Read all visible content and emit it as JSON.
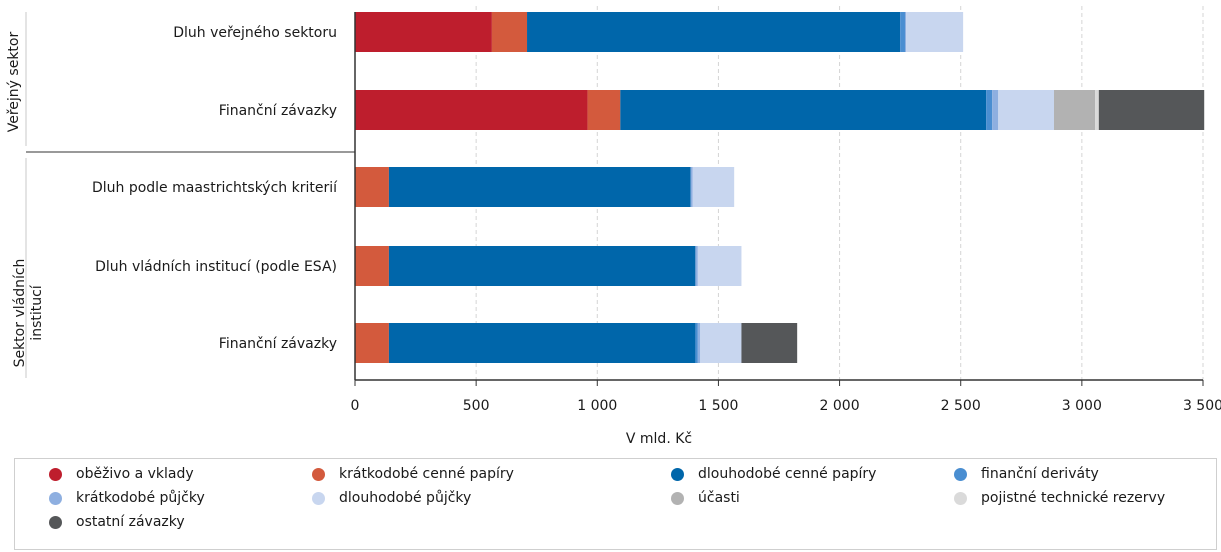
{
  "chart_data": {
    "type": "bar",
    "orientation": "horizontal",
    "stacked": true,
    "title": "",
    "xlabel": "V mld. Kč",
    "ylabel": "",
    "xlim": [
      0,
      3500
    ],
    "xticks": [
      0,
      500,
      1000,
      1500,
      2000,
      2500,
      3000,
      3500
    ],
    "xtick_labels": [
      "0",
      "500",
      "1 000",
      "1 500",
      "2 000",
      "2 500",
      "3 000",
      "3 500"
    ],
    "grid": "vertical dashed",
    "legend_position": "bottom",
    "groups": [
      {
        "name": "Veřejný sektor",
        "categories": [
          "Dluh veřejného sektoru",
          "Finanční závazky"
        ]
      },
      {
        "name": "Sektor vládních institucí",
        "categories": [
          "Dluh podle maastrichtských kriterií",
          "Dluh vládních institucí (podle ESA)",
          "Finanční závazky"
        ]
      }
    ],
    "categories": [
      "Dluh veřejného sektoru",
      "Finanční závazky",
      "Dluh podle maastrichtských kriterií",
      "Dluh vládních institucí (podle ESA)",
      "Finanční závazky"
    ],
    "series": [
      {
        "name": "oběživo a vklady",
        "color": "#be1e2d",
        "values": [
          565,
          960,
          0,
          0,
          0
        ]
      },
      {
        "name": "krátkodobé cenné papíry",
        "color": "#d35a3d",
        "values": [
          145,
          135,
          140,
          140,
          140
        ]
      },
      {
        "name": "dlouhodobé cenné papíry",
        "color": "#0066aa",
        "values": [
          1540,
          1510,
          1245,
          1265,
          1265
        ]
      },
      {
        "name": "finanční deriváty",
        "color": "#4a8ed1",
        "values": [
          20,
          25,
          0,
          0,
          10
        ]
      },
      {
        "name": "krátkodobé půjčky",
        "color": "#8eafe0",
        "values": [
          5,
          25,
          8,
          10,
          10
        ]
      },
      {
        "name": "dlouhodobé půjčky",
        "color": "#c8d6ef",
        "values": [
          235,
          230,
          172,
          180,
          170
        ]
      },
      {
        "name": "účasti",
        "color": "#b2b2b2",
        "values": [
          0,
          170,
          0,
          0,
          0
        ]
      },
      {
        "name": "pojistné technické rezervy",
        "color": "#dadada",
        "values": [
          0,
          15,
          0,
          0,
          0
        ]
      },
      {
        "name": "ostatní závazky",
        "color": "#555759",
        "values": [
          0,
          435,
          0,
          0,
          230
        ]
      }
    ]
  }
}
